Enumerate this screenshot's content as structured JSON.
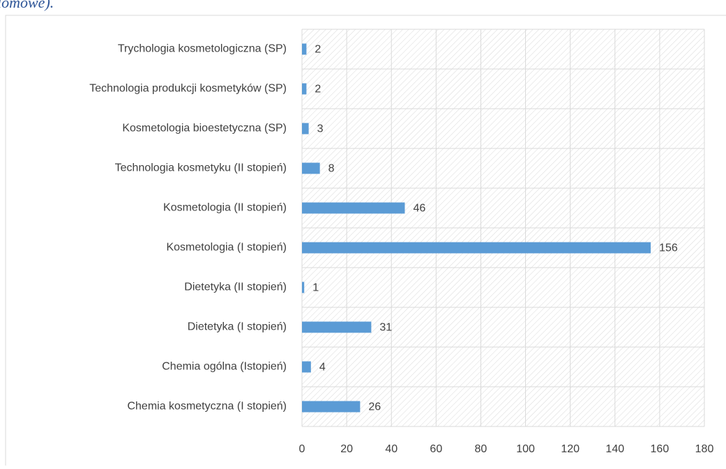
{
  "chart_data": {
    "type": "bar",
    "orientation": "horizontal",
    "title": "lomowe).",
    "categories": [
      "Trychologia kosmetologiczna (SP)",
      "Technologia produkcji kosmetyków (SP)",
      "Kosmetologia bioestetyczna (SP)",
      "Technologia kosmetyku (II stopień)",
      "Kosmetologia (II stopień)",
      "Kosmetologia (I stopień)",
      "Dietetyka (II stopień)",
      "Dietetyka (I stopień)",
      "Chemia ogólna (Istopień)",
      "Chemia kosmetyczna (I stopień)"
    ],
    "values": [
      2,
      2,
      3,
      8,
      46,
      156,
      1,
      31,
      4,
      26
    ],
    "color": "#5b9bd5",
    "xlim": [
      0,
      180
    ],
    "xticks": [
      0,
      20,
      40,
      60,
      80,
      100,
      120,
      140,
      160,
      180
    ],
    "grid": true
  }
}
